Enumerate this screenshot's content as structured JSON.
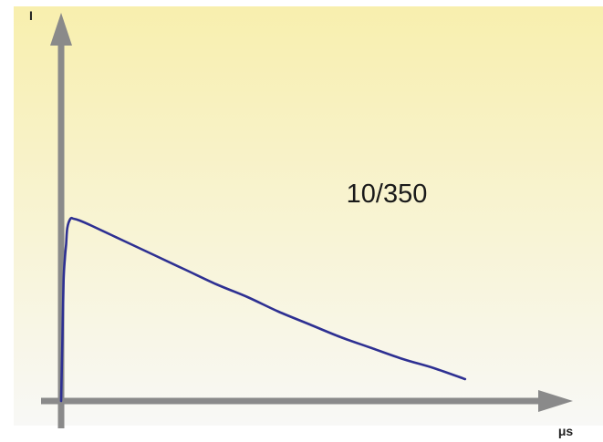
{
  "chart_data": {
    "type": "line",
    "title": "",
    "annotation": "10/350",
    "xlabel": "μs",
    "ylabel": "I",
    "grid": false,
    "legend": "none",
    "x": [
      0,
      2,
      4,
      6,
      8,
      10,
      15,
      20,
      30,
      50,
      100,
      150,
      200,
      250,
      300,
      350,
      400,
      450,
      500,
      550,
      600,
      650
    ],
    "series": [
      {
        "values": [
          0,
          0.33,
          0.66,
          0.78,
          0.86,
          0.95,
          1.0,
          1.0,
          0.99,
          0.96,
          0.88,
          0.8,
          0.72,
          0.64,
          0.57,
          0.49,
          0.42,
          0.35,
          0.29,
          0.23,
          0.18,
          0.12
        ]
      }
    ],
    "xlim": [
      0,
      800
    ],
    "ylim": [
      0,
      2
    ],
    "colors": {
      "curve": "#2e3092",
      "axis": "#8a8a8a",
      "background_top": "#f8efae",
      "background_bottom": "#f8f8f6"
    }
  }
}
